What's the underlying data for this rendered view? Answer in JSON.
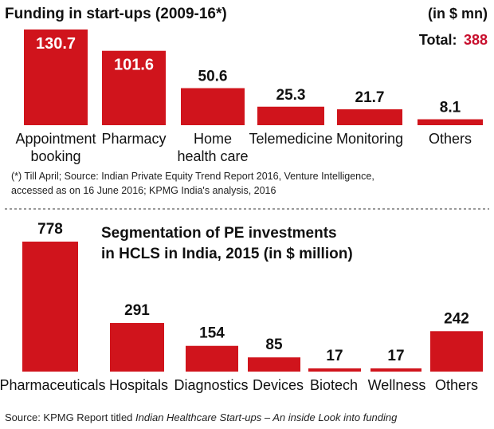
{
  "colors": {
    "bar": "#d0141c",
    "total": "#c8102e",
    "text": "#111111"
  },
  "chart_data": [
    {
      "type": "bar",
      "title": "Funding in start-ups (2009-16*)",
      "unit": "(in $ mn)",
      "total_label": "Total:",
      "total_value": "388",
      "categories": [
        [
          "Appointment",
          "booking"
        ],
        [
          "Pharmacy"
        ],
        [
          "Home",
          "health care"
        ],
        [
          "Telemedicine"
        ],
        [
          "Monitoring"
        ],
        [
          "Others"
        ]
      ],
      "values": [
        130.7,
        101.6,
        50.6,
        25.3,
        21.7,
        8.1
      ],
      "value_labels": [
        "130.7",
        "101.6",
        "50.6",
        "25.3",
        "21.7",
        "8.1"
      ],
      "ylim": [
        0,
        130.7
      ],
      "footnote": [
        "(*) Till April; Source: Indian Private Equity Trend Report 2016, Venture Intelligence,",
        "accessed as on 16 June 2016; KPMG India's analysis, 2016"
      ]
    },
    {
      "type": "bar",
      "title": [
        "Segmentation of PE investments",
        "in HCLS in India, 2015  (in $ million)"
      ],
      "categories": [
        "Pharmaceuticals",
        "Hospitals",
        "Diagnostics",
        "Devices",
        "Biotech",
        "Wellness",
        "Others"
      ],
      "values": [
        778,
        291,
        154,
        85,
        17,
        17,
        242
      ],
      "value_labels": [
        "778",
        "291",
        "154",
        "85",
        "17",
        "17",
        "242"
      ],
      "ylim": [
        0,
        778
      ]
    }
  ],
  "source": {
    "prefix": "Source: KPMG Report titled ",
    "italic": "Indian Healthcare Start-ups – An inside Look into funding"
  }
}
